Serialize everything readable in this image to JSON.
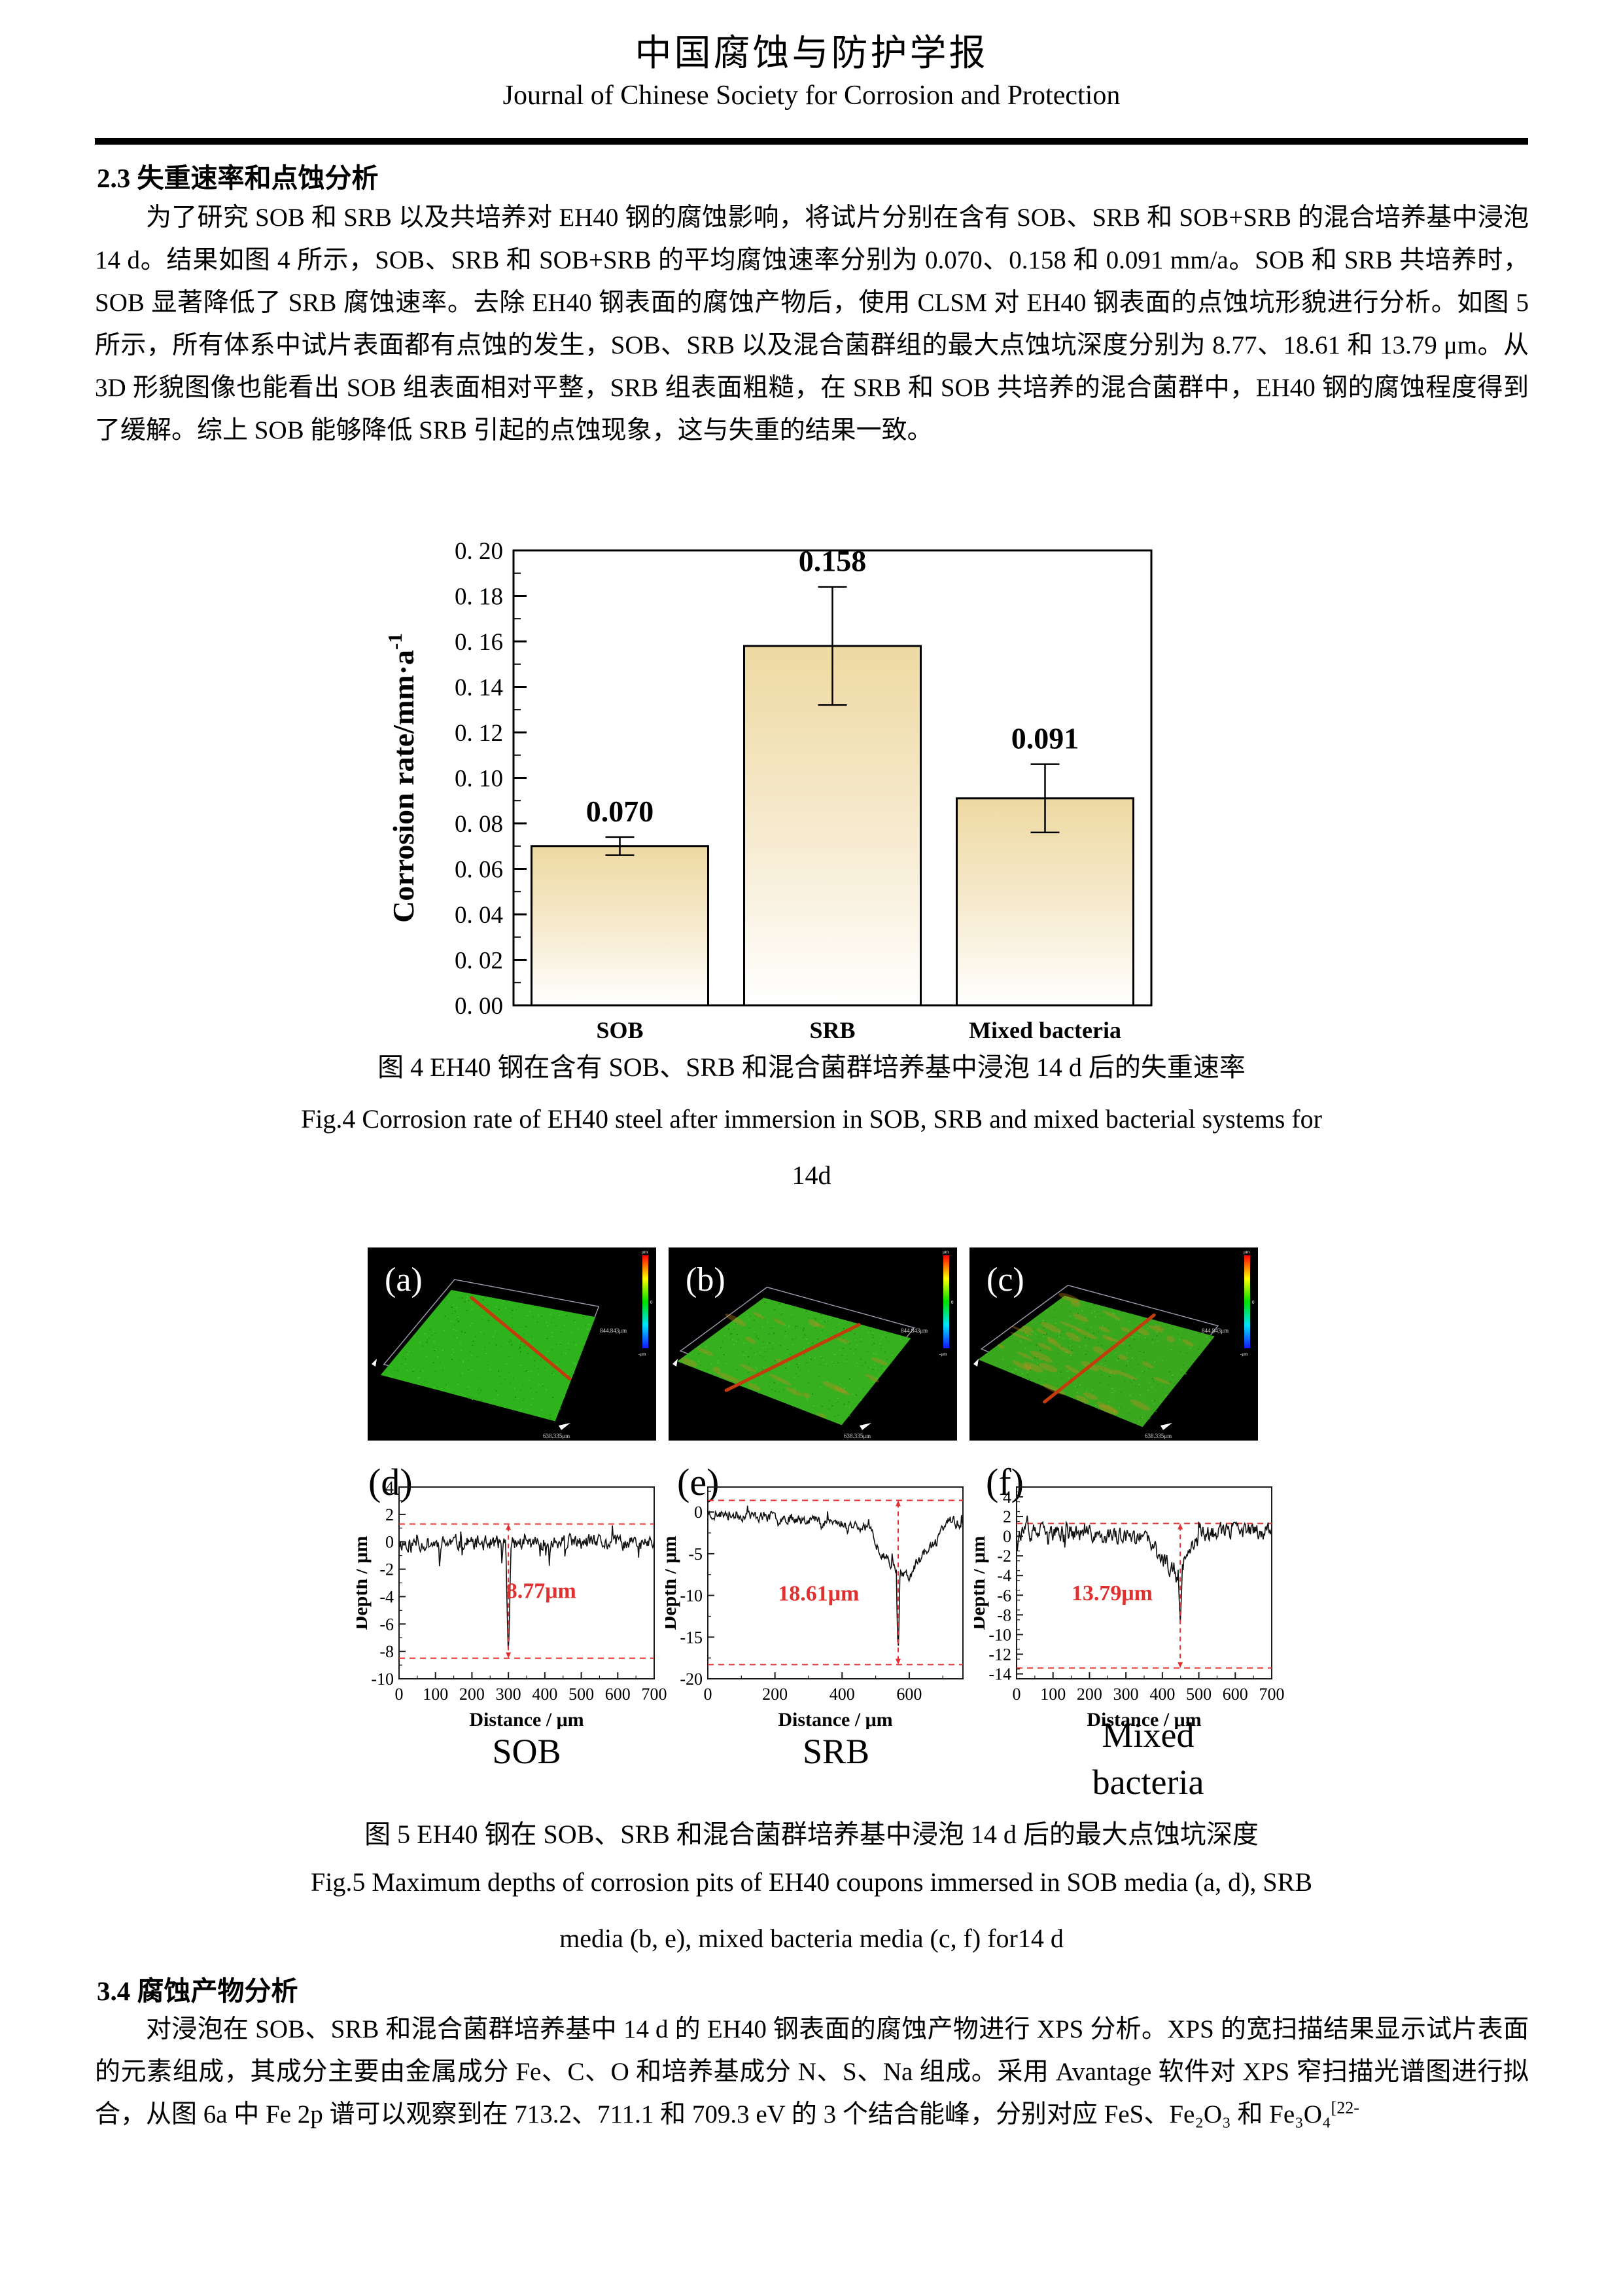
{
  "header": {
    "title_zh": "中国腐蚀与防护学报",
    "title_en": "Journal of Chinese Society for Corrosion and Protection"
  },
  "section_2_3": {
    "heading": "2.3 失重速率和点蚀分析",
    "paragraph": "为了研究 SOB 和 SRB 以及共培养对 EH40 钢的腐蚀影响，将试片分别在含有 SOB、SRB 和 SOB+SRB 的混合培养基中浸泡 14 d。结果如图 4 所示，SOB、SRB 和 SOB+SRB 的平均腐蚀速率分别为 0.070、0.158 和 0.091 mm/a。SOB 和 SRB 共培养时，SOB 显著降低了 SRB 腐蚀速率。去除 EH40 钢表面的腐蚀产物后，使用 CLSM 对 EH40 钢表面的点蚀坑形貌进行分析。如图 5 所示，所有体系中试片表面都有点蚀的发生，SOB、SRB 以及混合菌群组的最大点蚀坑深度分别为 8.77、18.61 和 13.79 μm。从 3D 形貌图像也能看出 SOB 组表面相对平整，SRB 组表面粗糙，在 SRB 和 SOB 共培养的混合菌群中，EH40 钢的腐蚀程度得到了缓解。综上 SOB 能够降低 SRB 引起的点蚀现象，这与失重的结果一致。"
  },
  "figure4": {
    "caption_zh": "图 4 EH40 钢在含有 SOB、SRB 和混合菌群培养基中浸泡 14 d 后的失重速率",
    "caption_en": "Fig.4 Corrosion rate of EH40 steel after immersion in SOB, SRB and mixed bacterial systems for",
    "caption_en2": "14d"
  },
  "figure5": {
    "caption_zh": "图 5 EH40 钢在 SOB、SRB 和混合菌群培养基中浸泡 14 d 后的最大点蚀坑深度",
    "caption_en": "Fig.5 Maximum depths of corrosion pits of EH40 coupons immersed in SOB media (a, d), SRB",
    "caption_en2": "media (b, e), mixed bacteria media (c, f) for14 d",
    "group_labels": {
      "d": "SOB",
      "e": "SRB",
      "f1": "Mixed",
      "f2": "bacteria"
    },
    "panels_3d": [
      {
        "label": "(a)",
        "base": "#2fb31c",
        "orange_amount": 0,
        "quad": [
          [
            0.29,
            0.22
          ],
          [
            0.79,
            0.36
          ],
          [
            0.65,
            0.9
          ],
          [
            0.045,
            0.66
          ]
        ],
        "red_line": [
          [
            0.36,
            0.26
          ],
          [
            0.7,
            0.68
          ]
        ],
        "seed": 5,
        "colorbar": {
          "top": "μm",
          "mid": "0",
          "side": "844.843μm",
          "bottom": "638.335μm"
        }
      },
      {
        "label": "(b)",
        "base": "#37b01f",
        "orange_amount": 22,
        "quad": [
          [
            0.33,
            0.26
          ],
          [
            0.84,
            0.47
          ],
          [
            0.6,
            0.92
          ],
          [
            0.03,
            0.59
          ]
        ],
        "red_line": [
          [
            0.66,
            0.4
          ],
          [
            0.2,
            0.74
          ]
        ],
        "seed": 9,
        "colorbar": {
          "top": "μm",
          "mid": "0",
          "side": "844.843μm",
          "bottom": "638.335μm"
        }
      },
      {
        "label": "(c)",
        "base": "#3aa81e",
        "orange_amount": 46,
        "quad": [
          [
            0.33,
            0.25
          ],
          [
            0.85,
            0.46
          ],
          [
            0.6,
            0.93
          ],
          [
            0.03,
            0.58
          ]
        ],
        "red_line": [
          [
            0.64,
            0.35
          ],
          [
            0.26,
            0.8
          ]
        ],
        "seed": 13,
        "colorbar": {
          "top": "μm",
          "mid": "0",
          "side": "844.843μm",
          "bottom": "638.335μm"
        }
      }
    ]
  },
  "section_3_4": {
    "heading": "3.4  腐蚀产物分析",
    "paragraph": "对浸泡在 SOB、SRB 和混合菌群培养基中 14 d 的 EH40 钢表面的腐蚀产物进行 XPS 分析。XPS 的宽扫描结果显示试片表面的元素组成，其成分主要由金属成分 Fe、C、O 和培养基成分 N、S、Na 组成。采用 Avantage 软件对 XPS 窄扫描光谱图进行拟合，从图 6a 中 Fe 2p 谱可以观察到在 713.2、711.1 和 709.3 eV 的 3 个结合能峰，分别对应 FeS、Fe₂O₃ 和 Fe₃O₄",
    "citation": "[22-"
  },
  "chart_data": [
    {
      "type": "bar",
      "title": "",
      "categories": [
        "SOB",
        "SRB",
        "Mixed bacteria"
      ],
      "values": [
        0.07,
        0.158,
        0.091
      ],
      "errors": [
        0.004,
        0.026,
        0.015
      ],
      "value_labels": [
        "0.070",
        "0.158",
        "0.091"
      ],
      "xlabel": "",
      "ylabel": "Corrosion rate/mm·a",
      "ylabel_sup": "-1",
      "ylim": [
        0,
        0.2
      ],
      "ytick_step": 0.02,
      "ytick_labels": [
        "0. 00",
        "0. 02",
        "0. 04",
        "0. 06",
        "0. 08",
        "0. 10",
        "0. 12",
        "0. 14",
        "0. 16",
        "0. 18",
        "0. 20"
      ],
      "grid": false,
      "bar_fill_top": "#eed9a2",
      "bar_fill_bottom": "#ffffff",
      "bar_border": "#000000"
    },
    {
      "type": "line",
      "panel": "(d)",
      "xlabel": "Distance / μm",
      "ylabel": "Depth / μm",
      "xlim": [
        0,
        700
      ],
      "xticks": [
        0,
        100,
        200,
        300,
        400,
        500,
        600,
        700
      ],
      "x_minor": 50,
      "ylim": [
        -10,
        4
      ],
      "yticks": [
        4,
        2,
        0,
        -2,
        -4,
        -6,
        -8,
        -10
      ],
      "y_minor": 1,
      "trend": [
        [
          0,
          -0.1
        ],
        [
          700,
          -0.1
        ]
      ],
      "noise_amp": 0.85,
      "spike_amp": 2.6,
      "seed": 11,
      "pit": {
        "x": 300,
        "depth": -8.35,
        "width": 6
      },
      "refs": {
        "upper": 1.3,
        "lower": -8.5
      },
      "annotation": {
        "text": "8.77μm",
        "x": 390,
        "y": -4.1
      },
      "accent_color": "#e03131"
    },
    {
      "type": "line",
      "panel": "(e)",
      "xlabel": "Distance / μm",
      "ylabel": "Depth / μm",
      "xlim": [
        0,
        760
      ],
      "xticks": [
        0,
        200,
        400,
        600
      ],
      "x_minor": 100,
      "ylim": [
        -20,
        3
      ],
      "yticks": [
        0,
        -5,
        -10,
        -15,
        -20
      ],
      "y_minor": 2.5,
      "trend": [
        [
          0,
          -0.2
        ],
        [
          300,
          -0.8
        ],
        [
          480,
          -1.8
        ],
        [
          510,
          -4.5
        ],
        [
          545,
          -6.0
        ],
        [
          570,
          -7.2
        ],
        [
          600,
          -7.8
        ],
        [
          625,
          -6.0
        ],
        [
          650,
          -4.5
        ],
        [
          680,
          -3.8
        ],
        [
          710,
          -1.0
        ],
        [
          760,
          -1.5
        ]
      ],
      "noise_amp": 0.95,
      "spike_amp": 2.2,
      "seed": 23,
      "pit": {
        "x": 567,
        "depth": -17.4,
        "width": 7
      },
      "refs": {
        "upper": 1.4,
        "lower": -18.3
      },
      "annotation": {
        "text": "18.61μm",
        "x": 330,
        "y": -10.6
      },
      "accent_color": "#e03131"
    },
    {
      "type": "line",
      "panel": "(f)",
      "xlabel": "Distance /  μm",
      "ylabel": "Depth /  μm",
      "xlim": [
        0,
        700
      ],
      "xticks": [
        0,
        100,
        200,
        300,
        400,
        500,
        600,
        700
      ],
      "x_minor": 50,
      "ylim": [
        -14.5,
        5
      ],
      "yticks": [
        4,
        2,
        0,
        -2,
        -4,
        -6,
        -8,
        -10,
        -12,
        -14
      ],
      "y_minor": 1,
      "trend": [
        [
          0,
          0.4
        ],
        [
          200,
          0.2
        ],
        [
          360,
          -0.4
        ],
        [
          395,
          -2.2
        ],
        [
          425,
          -3.2
        ],
        [
          450,
          -3.6
        ],
        [
          465,
          -1.5
        ],
        [
          500,
          0.3
        ],
        [
          700,
          0.6
        ]
      ],
      "noise_amp": 1.35,
      "spike_amp": 2.4,
      "seed": 37,
      "pit": {
        "x": 449,
        "depth": -8.9,
        "width": 7
      },
      "refs": {
        "upper": 1.3,
        "lower": -13.4
      },
      "annotation": {
        "text": "13.79μm",
        "x": 262,
        "y": -6.5
      },
      "accent_color": "#e03131"
    }
  ]
}
